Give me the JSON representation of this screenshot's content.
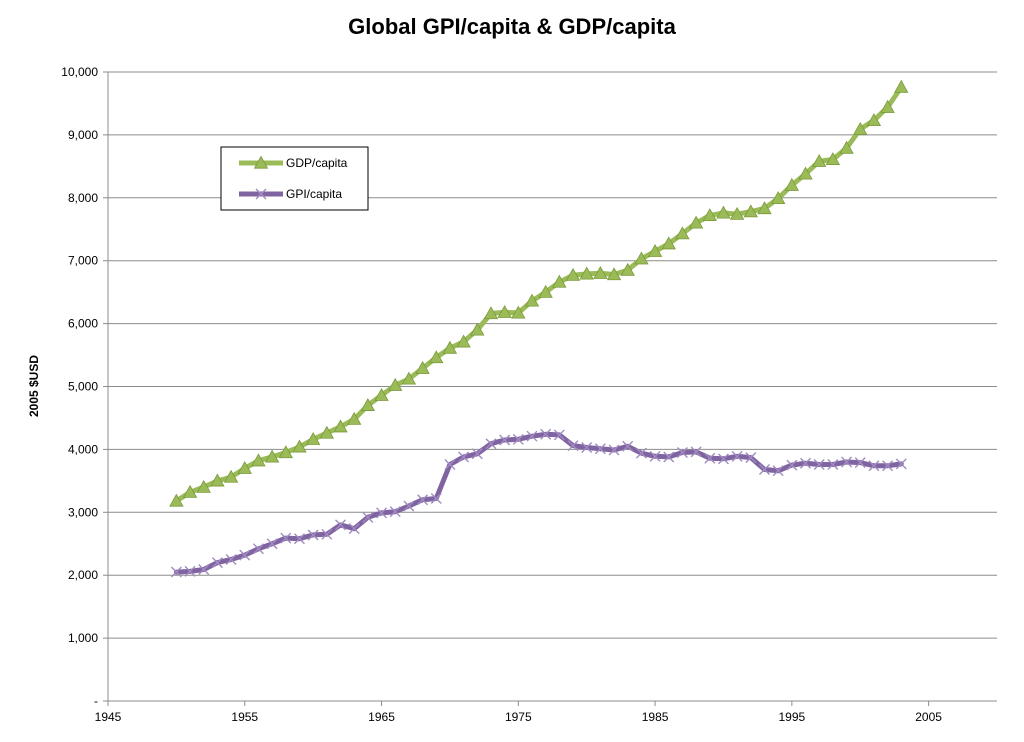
{
  "chart_data": {
    "type": "line",
    "title": "Global GPI/capita & GDP/capita",
    "xlabel": "",
    "ylabel": "2005 $USD",
    "xlim": [
      1945,
      2010
    ],
    "ylim": [
      0,
      10000
    ],
    "x_ticks": [
      1945,
      1955,
      1965,
      1975,
      1985,
      1995,
      2005
    ],
    "y_ticks": [
      0,
      1000,
      2000,
      3000,
      4000,
      5000,
      6000,
      7000,
      8000,
      9000,
      10000
    ],
    "y_tick_labels": [
      "-",
      "1,000",
      "2,000",
      "3,000",
      "4,000",
      "5,000",
      "6,000",
      "7,000",
      "8,000",
      "9,000",
      "10,000"
    ],
    "grid": "horizontal",
    "legend_position": "top-left",
    "x": [
      1950,
      1951,
      1952,
      1953,
      1954,
      1955,
      1956,
      1957,
      1958,
      1959,
      1960,
      1961,
      1962,
      1963,
      1964,
      1965,
      1966,
      1967,
      1968,
      1969,
      1970,
      1971,
      1972,
      1973,
      1974,
      1975,
      1976,
      1977,
      1978,
      1979,
      1980,
      1981,
      1982,
      1983,
      1984,
      1985,
      1986,
      1987,
      1988,
      1989,
      1990,
      1991,
      1992,
      1993,
      1994,
      1995,
      1996,
      1997,
      1998,
      1999,
      2000,
      2001,
      2002,
      2003
    ],
    "series": [
      {
        "name": "GDP/capita",
        "color": "#9bbb59",
        "marker": "triangle",
        "values": [
          3180,
          3320,
          3400,
          3500,
          3560,
          3700,
          3820,
          3880,
          3950,
          4040,
          4160,
          4260,
          4360,
          4480,
          4700,
          4860,
          5020,
          5120,
          5290,
          5460,
          5610,
          5710,
          5900,
          6160,
          6180,
          6170,
          6360,
          6500,
          6660,
          6770,
          6790,
          6800,
          6780,
          6850,
          7030,
          7150,
          7270,
          7430,
          7600,
          7720,
          7760,
          7740,
          7780,
          7830,
          7990,
          8200,
          8380,
          8580,
          8610,
          8790,
          9090,
          9230,
          9440,
          9760
        ]
      },
      {
        "name": "GPI/capita",
        "color": "#8064a2",
        "marker": "x",
        "values": [
          2050,
          2060,
          2090,
          2200,
          2250,
          2320,
          2420,
          2500,
          2590,
          2580,
          2640,
          2650,
          2800,
          2740,
          2920,
          2990,
          3010,
          3100,
          3200,
          3220,
          3760,
          3880,
          3930,
          4090,
          4150,
          4160,
          4210,
          4240,
          4230,
          4060,
          4030,
          4010,
          3990,
          4050,
          3940,
          3890,
          3880,
          3950,
          3960,
          3860,
          3850,
          3890,
          3870,
          3680,
          3660,
          3750,
          3780,
          3760,
          3760,
          3800,
          3790,
          3740,
          3740,
          3770
        ]
      }
    ]
  }
}
